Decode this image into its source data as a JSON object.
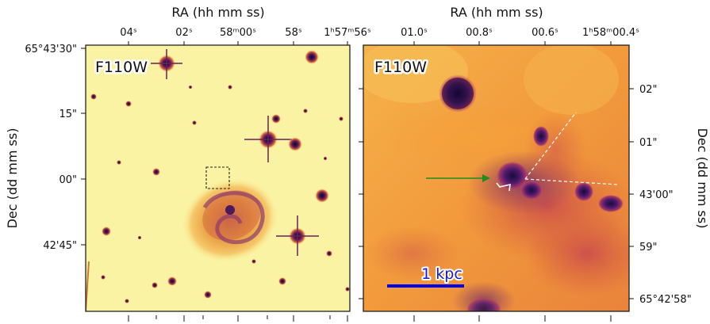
{
  "left_panel": {
    "filter_label": "F110W",
    "top_axis_title": "RA (hh mm ss)",
    "left_axis_title": "Dec (dd mm ss)",
    "ra_ticks": [
      "04ˢ",
      "02ˢ",
      "58ᵐ00ˢ",
      "58ˢ",
      "1ʰ57ᵐ56ˢ"
    ],
    "dec_ticks": [
      "65°43'30\"",
      "15\"",
      "00\"",
      "42'45\""
    ]
  },
  "right_panel": {
    "filter_label": "F110W",
    "top_axis_title": "RA (hh mm ss)",
    "right_axis_title": "Dec (dd mm ss)",
    "ra_ticks": [
      "01.0ˢ",
      "00.8ˢ",
      "00.6ˢ",
      "1ʰ58ᵐ00.4ˢ"
    ],
    "dec_ticks": [
      "02\"",
      "01\"",
      "43'00\"",
      "59\"",
      "65°42'58\""
    ],
    "scale_bar_label": "1 kpc"
  },
  "colors": {
    "scale_bar": "#0000ee",
    "arrow": "#1e8c1e",
    "guide_lines": "#ffffff",
    "colormap": "inferno"
  }
}
